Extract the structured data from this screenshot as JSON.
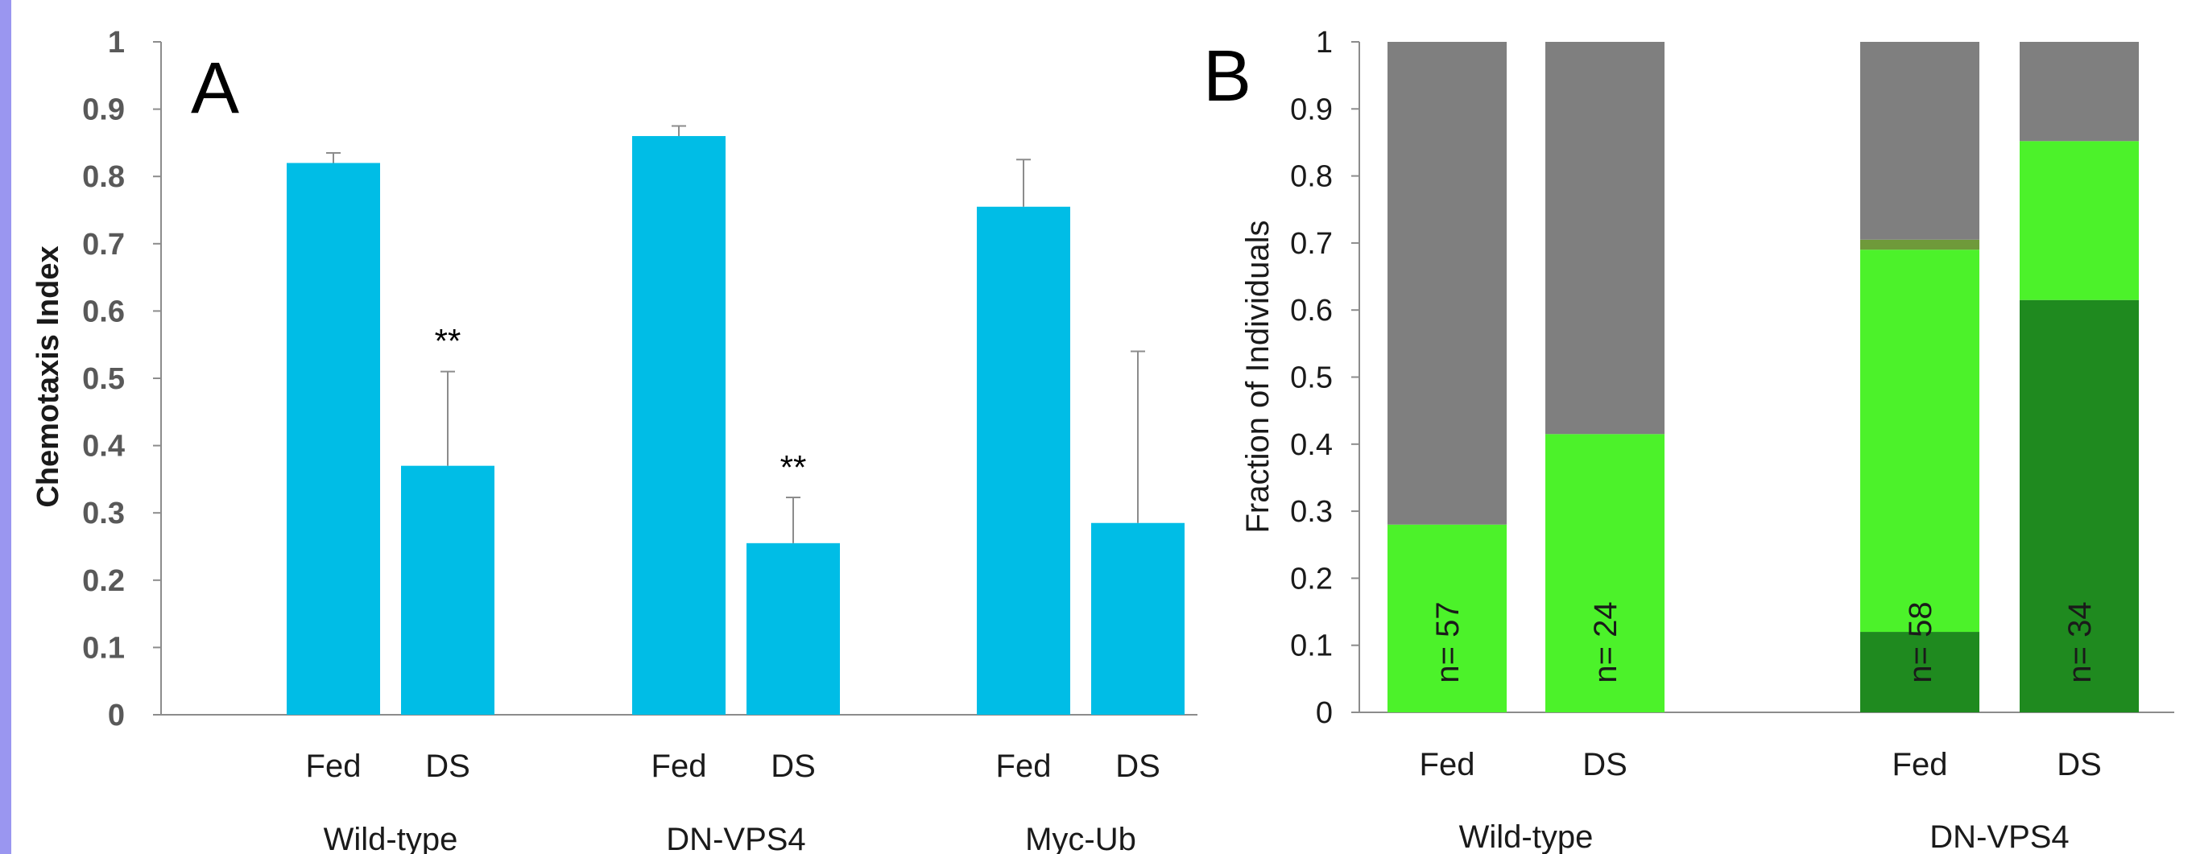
{
  "panels": {
    "a": "A",
    "b": "B"
  },
  "chart_data": [
    {
      "type": "bar",
      "ylabel": "Chemotaxis Index",
      "ylim": [
        0,
        1
      ],
      "yticks": [
        "0",
        "0.1",
        "0.2",
        "0.3",
        "0.4",
        "0.5",
        "0.6",
        "0.7",
        "0.8",
        "0.9",
        "1"
      ],
      "groups": [
        "Wild-type",
        "DN-VPS4",
        "Myc-Ub"
      ],
      "categories": [
        "Fed",
        "DS",
        "Fed",
        "DS",
        "Fed",
        "DS"
      ],
      "values": [
        0.82,
        0.37,
        0.86,
        0.255,
        0.755,
        0.285
      ],
      "errors": [
        0.015,
        0.14,
        0.015,
        0.068,
        0.07,
        0.255
      ],
      "annotations": [
        "",
        "**",
        "",
        "**",
        "",
        ""
      ],
      "color": "#00bde6"
    },
    {
      "type": "bar",
      "stacked": true,
      "ylabel": "Fraction of Individuals",
      "ylim": [
        0,
        1
      ],
      "yticks": [
        "0",
        "0.1",
        "0.2",
        "0.3",
        "0.4",
        "0.5",
        "0.6",
        "0.7",
        "0.8",
        "0.9",
        "1"
      ],
      "groups": [
        "Wild-type",
        "DN-VPS4"
      ],
      "categories": [
        "Fed",
        "DS",
        "Fed",
        "DS"
      ],
      "n_labels": [
        "n= 57",
        "n= 24",
        "n= 58",
        "n= 34"
      ],
      "series": [
        {
          "values": [
            0,
            0,
            0.12,
            0.615
          ],
          "color": "#1f8a1f"
        },
        {
          "values": [
            0.28,
            0.415,
            0.57,
            0.237
          ],
          "color": "#4cf22a"
        },
        {
          "values": [
            0,
            0,
            0.015,
            0
          ],
          "color": "#6f9a3a"
        },
        {
          "values": [
            0.72,
            0.585,
            0.295,
            0.148
          ],
          "color": "#7f7f7f"
        }
      ]
    }
  ]
}
